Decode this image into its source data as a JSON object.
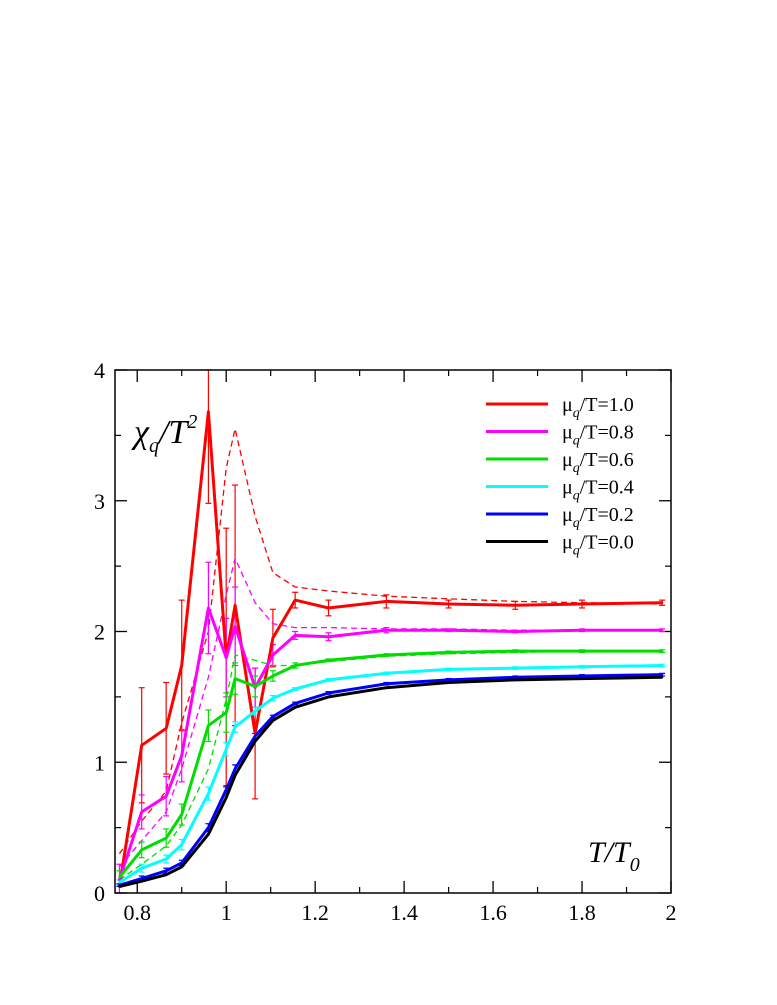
{
  "chart_data": {
    "type": "line",
    "xlabel": "T/T0",
    "ylabel": "χq/T2",
    "xlim": [
      0.75,
      2.0
    ],
    "ylim": [
      0,
      4
    ],
    "xticks": [
      "0.8",
      "1",
      "1.2",
      "1.4",
      "1.6",
      "1.8",
      "2"
    ],
    "yticks": [
      "0",
      "1",
      "2",
      "3",
      "4"
    ],
    "legend_position": "top-right",
    "legend_labels": [
      "μq/T=1.0",
      "μq/T=0.8",
      "μq/T=0.6",
      "μq/T=0.4",
      "μq/T=0.2",
      "μq/T=0.0"
    ],
    "x": [
      0.76,
      0.81,
      0.865,
      0.9,
      0.96,
      1.0,
      1.02,
      1.065,
      1.105,
      1.155,
      1.23,
      1.36,
      1.5,
      1.65,
      1.8,
      1.98
    ],
    "series": [
      {
        "name": "μq/T=1.0",
        "color": "#ff0000",
        "values": [
          0.05,
          1.13,
          1.26,
          1.74,
          3.68,
          1.8,
          2.2,
          1.22,
          1.95,
          2.24,
          2.18,
          2.23,
          2.21,
          2.2,
          2.21,
          2.22
        ],
        "errors": [
          0,
          0.44,
          0.35,
          0.5,
          0.7,
          0.99,
          0.92,
          0.5,
          0.22,
          0.06,
          0.06,
          0.05,
          0.03,
          0.03,
          0.03,
          0.02
        ],
        "dashed": [
          0.3,
          0.55,
          0.78,
          1.3,
          2.0,
          3.25,
          3.55,
          2.88,
          2.45,
          2.34,
          2.31,
          2.27,
          2.25,
          2.23,
          2.22,
          2.21
        ]
      },
      {
        "name": "μq/T=0.8",
        "color": "#ff00ff",
        "values": [
          0.1,
          0.62,
          0.74,
          1.05,
          2.18,
          1.8,
          2.04,
          1.57,
          1.82,
          1.97,
          1.96,
          2.01,
          2.01,
          2.0,
          2.01,
          2.01
        ],
        "errors": [
          0.12,
          0.13,
          0.15,
          0.2,
          0.35,
          0.3,
          0.3,
          0.15,
          0.08,
          0.03,
          0.03,
          0.02,
          0.01,
          0.01,
          0.01,
          0.01
        ],
        "dashed": [
          0.2,
          0.4,
          0.62,
          0.95,
          1.65,
          2.28,
          2.56,
          2.22,
          2.06,
          2.03,
          2.03,
          2.02,
          2.02,
          2.01,
          2.01,
          2.01
        ]
      },
      {
        "name": "μq/T=0.6",
        "color": "#00dd00",
        "values": [
          0.12,
          0.33,
          0.42,
          0.6,
          1.28,
          1.38,
          1.64,
          1.58,
          1.66,
          1.74,
          1.78,
          1.82,
          1.84,
          1.85,
          1.85,
          1.85
        ],
        "errors": [
          0.05,
          0.06,
          0.07,
          0.08,
          0.12,
          0.15,
          0.12,
          0.08,
          0.04,
          0.02,
          0.01,
          0.01,
          0.01,
          0.01,
          0.01,
          0.01
        ],
        "dashed": [
          0.1,
          0.22,
          0.36,
          0.52,
          0.95,
          1.48,
          1.82,
          1.78,
          1.74,
          1.74,
          1.77,
          1.81,
          1.83,
          1.84,
          1.85,
          1.85
        ]
      },
      {
        "name": "μq/T=0.4",
        "color": "#00ffff",
        "values": [
          0.08,
          0.19,
          0.26,
          0.37,
          0.76,
          1.1,
          1.27,
          1.39,
          1.49,
          1.56,
          1.63,
          1.68,
          1.71,
          1.72,
          1.73,
          1.74
        ],
        "errors": [
          0.02,
          0.03,
          0.03,
          0.04,
          0.05,
          0.05,
          0.04,
          0.03,
          0.02,
          0.01,
          0.01,
          0.01,
          0.01,
          0.01,
          0.01,
          0.01
        ],
        "dashed": []
      },
      {
        "name": "μq/T=0.2",
        "color": "#0000ff",
        "values": [
          0.06,
          0.11,
          0.17,
          0.23,
          0.5,
          0.79,
          0.95,
          1.2,
          1.35,
          1.45,
          1.53,
          1.6,
          1.63,
          1.65,
          1.66,
          1.67
        ],
        "errors": [
          0.01,
          0.02,
          0.02,
          0.02,
          0.03,
          0.03,
          0.03,
          0.02,
          0.01,
          0.01,
          0.01,
          0.01,
          0.01,
          0.01,
          0.01,
          0.01
        ],
        "dashed": []
      },
      {
        "name": "μq/T=0.0",
        "color": "#000000",
        "values": [
          0.05,
          0.09,
          0.14,
          0.2,
          0.45,
          0.73,
          0.9,
          1.16,
          1.32,
          1.42,
          1.5,
          1.57,
          1.61,
          1.63,
          1.64,
          1.65
        ],
        "errors": [],
        "dashed": []
      }
    ]
  }
}
